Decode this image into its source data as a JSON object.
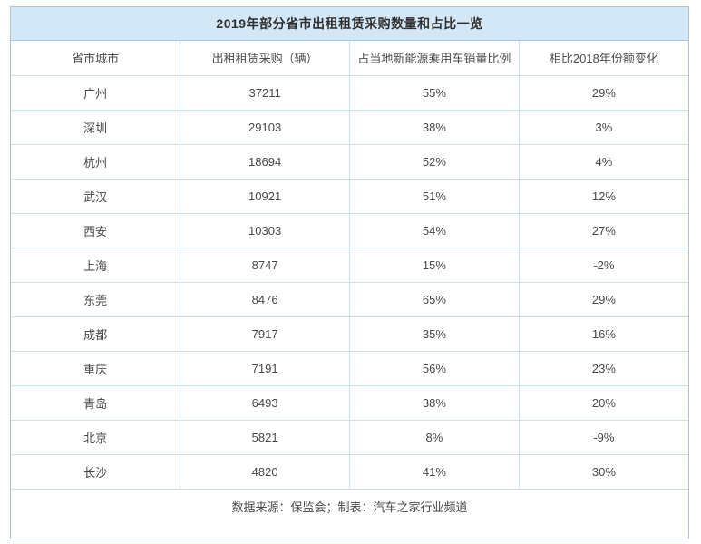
{
  "title": "2019年部分省市出租租赁采购数量和占比一览",
  "footer_note": "数据来源：保监会；制表：汽车之家行业频道",
  "colors": {
    "title_bg": "#d4e7f6",
    "panel_border": "#a9c2e8",
    "grid_line": "#cfe0ee",
    "title_text": "#2f2f2f",
    "cell_text": "#484848"
  },
  "chart_data": {
    "type": "table",
    "title": "2019年部分省市出租租赁采购数量和占比一览",
    "columns": [
      "省市城市",
      "出租租赁采购（辆）",
      "占当地新能源乘用车销量比例",
      "相比2018年份额变化"
    ],
    "rows": [
      [
        "广州",
        "37211",
        "55%",
        "29%"
      ],
      [
        "深圳",
        "29103",
        "38%",
        "3%"
      ],
      [
        "杭州",
        "18694",
        "52%",
        "4%"
      ],
      [
        "武汉",
        "10921",
        "51%",
        "12%"
      ],
      [
        "西安",
        "10303",
        "54%",
        "27%"
      ],
      [
        "上海",
        "8747",
        "15%",
        "-2%"
      ],
      [
        "东莞",
        "8476",
        "65%",
        "29%"
      ],
      [
        "成都",
        "7917",
        "35%",
        "16%"
      ],
      [
        "重庆",
        "7191",
        "56%",
        "23%"
      ],
      [
        "青岛",
        "6493",
        "38%",
        "20%"
      ],
      [
        "北京",
        "5821",
        "8%",
        "-9%"
      ],
      [
        "长沙",
        "4820",
        "41%",
        "30%"
      ]
    ],
    "source_note": "数据来源：保监会；制表：汽车之家行业频道",
    "layout": {
      "grid": true,
      "header_row": true,
      "footer_note_position": "bottom-center"
    }
  }
}
